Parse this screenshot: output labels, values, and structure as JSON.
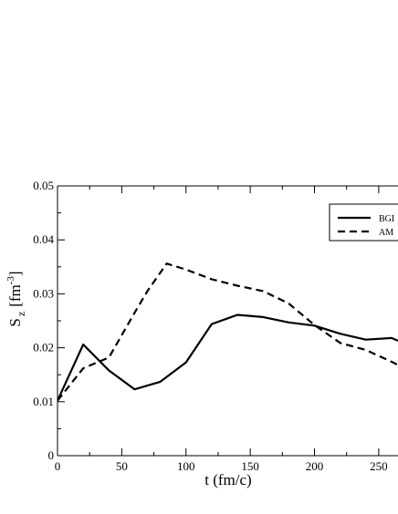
{
  "chart_data": {
    "type": "line",
    "xlabel": "t (fm/c)",
    "ylabel": {
      "main": "S",
      "sub": "z",
      "unit": "[fm",
      "unit_sup": "-3",
      "unit_close": "]"
    },
    "xlim": [
      0,
      265
    ],
    "ylim": [
      0,
      0.05
    ],
    "x_ticks": [
      0,
      50,
      100,
      150,
      200,
      250
    ],
    "x_tick_labels": [
      "0",
      "50",
      "100",
      "150",
      "200",
      "250"
    ],
    "y_ticks": [
      0,
      0.01,
      0.02,
      0.03,
      0.04,
      0.05
    ],
    "y_tick_labels": [
      "0",
      "0.01",
      "0.02",
      "0.03",
      "0.04",
      "0.05"
    ],
    "grid": false,
    "legend_position": "top-right",
    "series": [
      {
        "name": "BGI",
        "style": "solid",
        "x": [
          0,
          20,
          40,
          60,
          80,
          100,
          120,
          140,
          160,
          180,
          200,
          220,
          240,
          260,
          265
        ],
        "y": [
          0.0102,
          0.0206,
          0.0158,
          0.0123,
          0.0137,
          0.0173,
          0.0244,
          0.0261,
          0.0257,
          0.0247,
          0.0241,
          0.0226,
          0.0215,
          0.0218,
          0.0213
        ]
      },
      {
        "name": "AM",
        "style": "dashed",
        "x": [
          0,
          20,
          40,
          60,
          70,
          85,
          100,
          120,
          140,
          160,
          180,
          200,
          220,
          240,
          260,
          265
        ],
        "y": [
          0.0102,
          0.0162,
          0.0182,
          0.0265,
          0.0305,
          0.0356,
          0.0345,
          0.0327,
          0.0315,
          0.0305,
          0.0282,
          0.0242,
          0.0209,
          0.0196,
          0.0174,
          0.0168
        ]
      }
    ]
  }
}
